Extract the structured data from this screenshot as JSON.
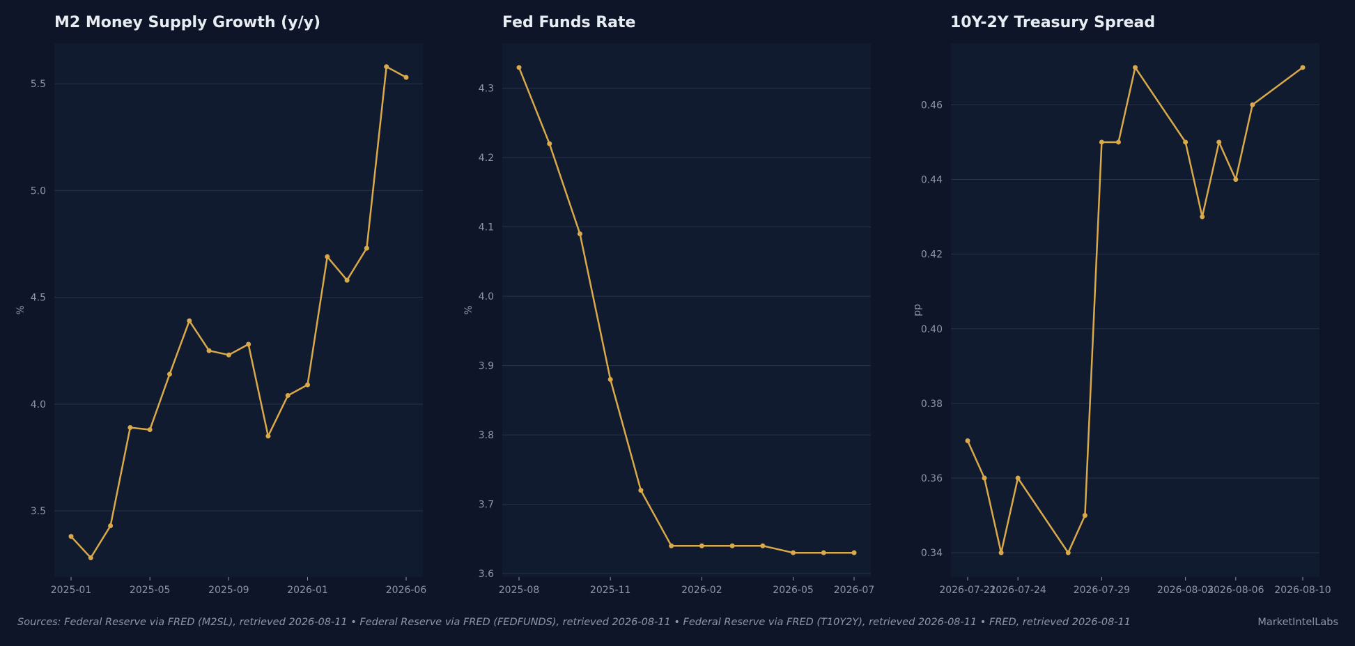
{
  "footer": {
    "sources": "Sources: Federal Reserve via FRED (M2SL), retrieved 2026-08-11  •  Federal Reserve via FRED (FEDFUNDS), retrieved 2026-08-11  •  Federal Reserve via FRED (T10Y2Y), retrieved 2026-08-11  •  FRED, retrieved 2026-08-11",
    "brand": "MarketIntelLabs"
  },
  "colors": {
    "background": "#0e1528",
    "plot_area": "#111b30",
    "line": "#d9a94a",
    "grid": "#27324a",
    "tick_text": "#8e96a6",
    "title_text": "#e8ecf3"
  },
  "chart_data": [
    {
      "type": "line",
      "title": "M2 Money Supply Growth (y/y)",
      "xlabel": "",
      "ylabel": "%",
      "grid": "horizontal",
      "x_ticks": [
        "2025-01",
        "2025-05",
        "2025-09",
        "2026-01",
        "2026-06"
      ],
      "y_ticks": [
        "3.5",
        "4.0",
        "4.5",
        "5.0",
        "5.5"
      ],
      "ylim": [
        3.19,
        5.69
      ],
      "x": [
        "2025-01",
        "2025-02",
        "2025-03",
        "2025-04",
        "2025-05",
        "2025-06",
        "2025-07",
        "2025-08",
        "2025-09",
        "2025-10",
        "2025-11",
        "2025-12",
        "2026-01",
        "2026-02",
        "2026-03",
        "2026-04",
        "2026-05",
        "2026-06"
      ],
      "series": [
        {
          "values": [
            3.38,
            3.28,
            3.43,
            3.89,
            3.88,
            4.14,
            4.39,
            4.25,
            4.23,
            4.28,
            3.85,
            4.04,
            4.09,
            4.69,
            4.58,
            4.73,
            5.58,
            5.53
          ]
        }
      ]
    },
    {
      "type": "line",
      "title": "Fed Funds Rate",
      "xlabel": "",
      "ylabel": "%",
      "grid": "horizontal",
      "x_ticks": [
        "2025-08",
        "2025-11",
        "2026-02",
        "2026-05",
        "2026-07"
      ],
      "y_ticks": [
        "3.6",
        "3.7",
        "3.8",
        "3.9",
        "4.0",
        "4.1",
        "4.2",
        "4.3"
      ],
      "ylim": [
        3.595,
        4.365
      ],
      "x": [
        "2025-08",
        "2025-09",
        "2025-10",
        "2025-11",
        "2025-12",
        "2026-01",
        "2026-02",
        "2026-03",
        "2026-04",
        "2026-05",
        "2026-06",
        "2026-07"
      ],
      "series": [
        {
          "values": [
            4.33,
            4.22,
            4.09,
            3.88,
            3.72,
            3.64,
            3.64,
            3.64,
            3.64,
            3.63,
            3.63,
            3.63
          ]
        }
      ]
    },
    {
      "type": "line",
      "title": "10Y-2Y Treasury Spread",
      "xlabel": "",
      "ylabel": "pp",
      "grid": "horizontal",
      "x_ticks": [
        "2026-07-21",
        "2026-07-24",
        "2026-07-29",
        "2026-08-03",
        "2026-08-06",
        "2026-08-10"
      ],
      "y_ticks": [
        "0.34",
        "0.36",
        "0.38",
        "0.40",
        "0.42",
        "0.44",
        "0.46"
      ],
      "ylim": [
        0.3335,
        0.4765
      ],
      "x": [
        "2026-07-21",
        "2026-07-22",
        "2026-07-23",
        "2026-07-24",
        "2026-07-27",
        "2026-07-28",
        "2026-07-29",
        "2026-07-30",
        "2026-07-31",
        "2026-08-03",
        "2026-08-04",
        "2026-08-05",
        "2026-08-06",
        "2026-08-07",
        "2026-08-10"
      ],
      "series": [
        {
          "values": [
            0.37,
            0.36,
            0.34,
            0.36,
            0.34,
            0.35,
            0.45,
            0.45,
            0.47,
            0.45,
            0.43,
            0.45,
            0.44,
            0.46,
            0.47
          ]
        }
      ]
    }
  ]
}
